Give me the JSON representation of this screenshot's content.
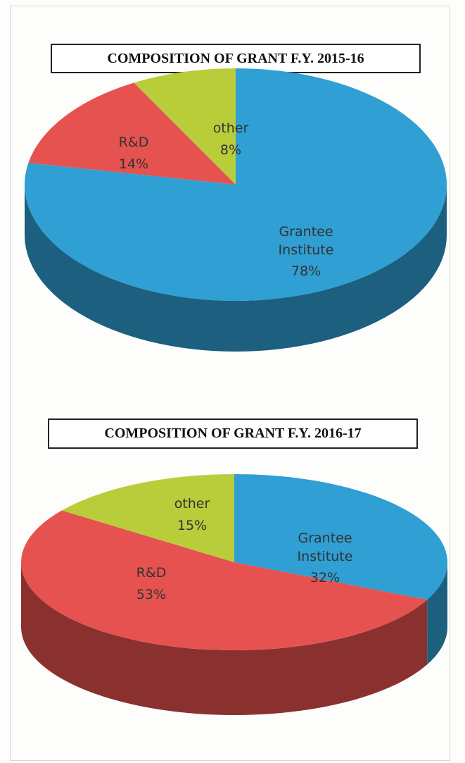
{
  "chart_data": [
    {
      "type": "pie",
      "title": "COMPOSITION OF GRANT F.Y. 2015-16",
      "categories": [
        "Grantee Institute",
        "R&D",
        "other"
      ],
      "values": [
        78,
        14,
        8
      ],
      "value_labels": [
        "78%",
        "14%",
        "8%"
      ],
      "colors": [
        "#2f9fd4",
        "#e6524f",
        "#b9cd3b"
      ]
    },
    {
      "type": "pie",
      "title": "COMPOSITION OF GRANT F.Y. 2016-17",
      "categories": [
        "Grantee Institute",
        "R&D",
        "other"
      ],
      "values": [
        32,
        53,
        15
      ],
      "value_labels": [
        "32%",
        "53%",
        "15%"
      ],
      "colors": [
        "#2f9fd4",
        "#e6524f",
        "#b9cd3b"
      ]
    }
  ]
}
